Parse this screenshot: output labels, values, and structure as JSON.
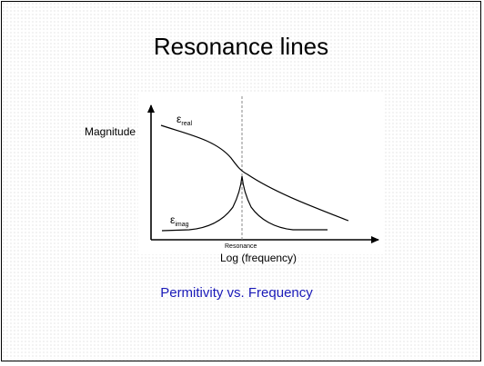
{
  "slide": {
    "title": "Resonance lines",
    "caption": "Permitivity vs. Frequency",
    "caption_color": "#1a1ab8"
  },
  "diagram": {
    "ylabel": "Magnitude",
    "xlabel": "Log (frequency)",
    "resonance_label": "Resonance",
    "real_symbol": "ε",
    "real_subscript": "real",
    "imag_symbol": "ε",
    "imag_subscript": "imag",
    "resonance_line_style": "dashed"
  }
}
